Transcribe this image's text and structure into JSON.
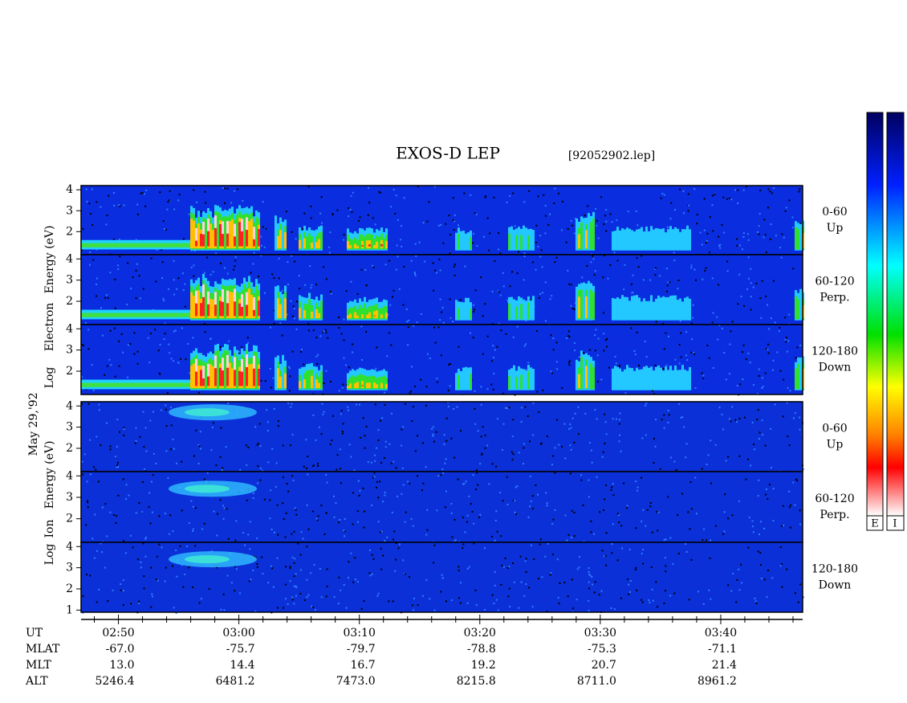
{
  "chart_data": {
    "type": "spectrogram",
    "title": "EXOS-D LEP",
    "subtitle": "[92052902.lep]",
    "date_label": "May 29,'92",
    "xlim": [
      166.9,
      226.8
    ],
    "xticks": [
      {
        "value": 170,
        "label": "02:50"
      },
      {
        "value": 180,
        "label": "03:00"
      },
      {
        "value": 190,
        "label": "03:10"
      },
      {
        "value": 200,
        "label": "03:20"
      },
      {
        "value": 210,
        "label": "03:30"
      },
      {
        "value": 220,
        "label": "03:40"
      }
    ],
    "xticks_minor": [
      168,
      172,
      174,
      176,
      178,
      182,
      184,
      186,
      188,
      192,
      194,
      196,
      198,
      202,
      204,
      206,
      208,
      212,
      214,
      216,
      218,
      222,
      224,
      226
    ],
    "groups": [
      {
        "species": "electron",
        "ylabel": [
          "Log",
          "Electron",
          "Energy (eV)"
        ],
        "panels": [
          {
            "ylim": [
              0.9,
              4.2
            ],
            "yticks": [
              2,
              3,
              4
            ],
            "label": [
              "0-60",
              "Up"
            ]
          },
          {
            "ylim": [
              0.9,
              4.2
            ],
            "yticks": [
              2,
              3,
              4
            ],
            "label": [
              "60-120",
              "Perp."
            ]
          },
          {
            "ylim": [
              0.9,
              4.2
            ],
            "yticks": [
              2,
              3,
              4
            ],
            "label": [
              "120-180",
              "Down"
            ]
          }
        ]
      },
      {
        "species": "ion",
        "ylabel": [
          "Log",
          "Ion",
          "Energy (eV)"
        ],
        "panels": [
          {
            "ylim": [
              0.9,
              4.2
            ],
            "yticks": [
              2,
              3,
              4
            ],
            "label": [
              "0-60",
              "Up"
            ]
          },
          {
            "ylim": [
              0.9,
              4.2
            ],
            "yticks": [
              2,
              3,
              4
            ],
            "label": [
              "60-120",
              "Perp."
            ]
          },
          {
            "ylim": [
              0.9,
              4.2
            ],
            "yticks": [
              1,
              2,
              3,
              4
            ],
            "label": [
              "120-180",
              "Down"
            ]
          }
        ]
      }
    ],
    "colorbars": [
      "E",
      "I"
    ],
    "ephemeris": {
      "ut_label": "UT",
      "rows": [
        {
          "label": "MLAT",
          "values": [
            "-67.0",
            "-75.7",
            "-79.7",
            "-78.8",
            "-75.3",
            "-71.1"
          ]
        },
        {
          "label": "MLT",
          "values": [
            "13.0",
            "14.4",
            "16.7",
            "19.2",
            "20.7",
            "21.4"
          ]
        },
        {
          "label": "ALT",
          "values": [
            "5246.4",
            "6481.2",
            "7473.0",
            "8215.8",
            "8711.0",
            "8961.2"
          ]
        }
      ]
    }
  }
}
